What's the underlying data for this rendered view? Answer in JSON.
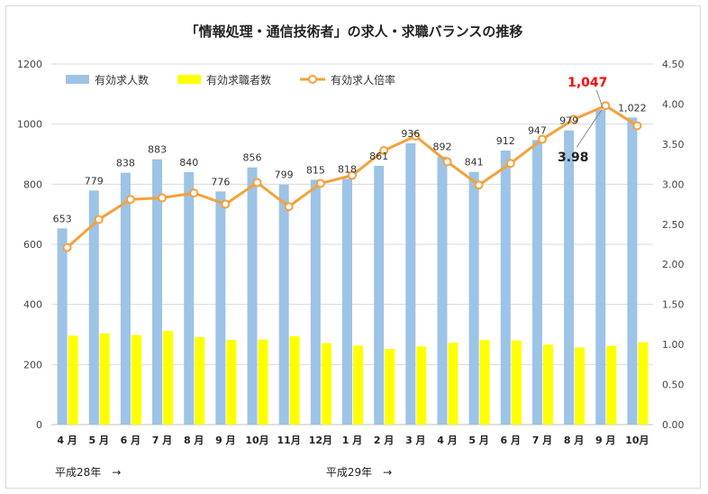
{
  "chart_data": {
    "type": "bar",
    "title": "「情報処理・通信技術者」の求人・求職バランスの推移",
    "categories": [
      "4 月",
      "5 月",
      "6 月",
      "7 月",
      "8 月",
      "9 月",
      "10月",
      "11月",
      "12月",
      "1 月",
      "2 月",
      "3 月",
      "4 月",
      "5 月",
      "6 月",
      "7 月",
      "8 月",
      "9 月",
      "10月"
    ],
    "year_labels": [
      "平成28年　→",
      "平成29年　→"
    ],
    "series": [
      {
        "name": "有効求人数",
        "type": "bar",
        "axis": "left",
        "color": "#9dc3e6",
        "values": [
          653,
          779,
          838,
          883,
          840,
          776,
          856,
          799,
          815,
          818,
          861,
          936,
          892,
          841,
          912,
          947,
          979,
          1047,
          1022
        ]
      },
      {
        "name": "有効求職者数",
        "type": "bar",
        "axis": "left",
        "color": "#ffff00",
        "values": [
          296,
          304,
          298,
          312,
          291,
          282,
          283,
          294,
          271,
          263,
          252,
          260,
          272,
          281,
          280,
          266,
          257,
          262,
          274
        ]
      },
      {
        "name": "有効求人倍率",
        "type": "line",
        "axis": "right",
        "color": "#f4a13a",
        "values": [
          2.21,
          2.56,
          2.81,
          2.83,
          2.89,
          2.75,
          3.02,
          2.72,
          3.01,
          3.11,
          3.42,
          3.6,
          3.28,
          2.99,
          3.26,
          3.56,
          3.81,
          3.98,
          3.73
        ]
      }
    ],
    "bar_labels": [
      "653",
      "779",
      "838",
      "883",
      "840",
      "776",
      "856",
      "799",
      "815",
      "818",
      "861",
      "936",
      "892",
      "841",
      "912",
      "947",
      "979",
      "1,047",
      "1,022"
    ],
    "highlight": {
      "index": 17,
      "bar_label": "1,047",
      "bar_label_color": "#ff0000",
      "ratio_label": "3.98"
    },
    "y_left": {
      "min": 0,
      "max": 1200,
      "ticks": [
        "0",
        "200",
        "400",
        "600",
        "800",
        "1000",
        "1200"
      ]
    },
    "y_right": {
      "min": 0,
      "max": 4.5,
      "ticks": [
        "0.00",
        "0.50",
        "1.00",
        "1.50",
        "2.00",
        "2.50",
        "3.00",
        "3.50",
        "4.00",
        "4.50"
      ]
    },
    "grid": true,
    "legend_position": "top-left"
  }
}
